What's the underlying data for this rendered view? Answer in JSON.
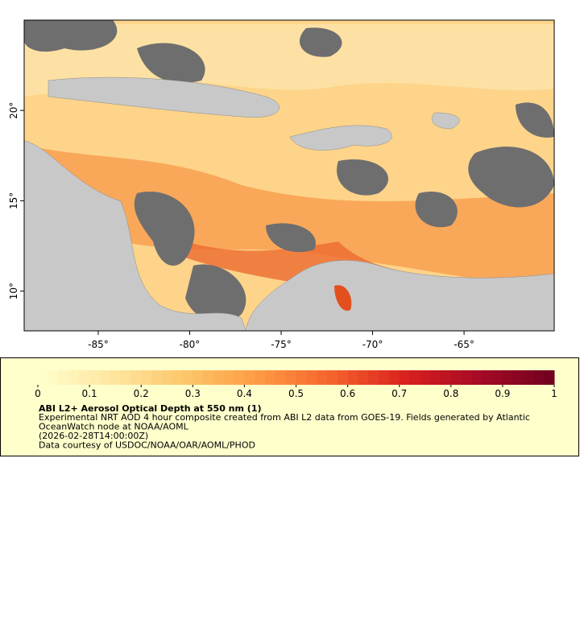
{
  "map": {
    "xlim": [
      -89.05,
      -60.07
    ],
    "ylim": [
      7.8,
      25
    ],
    "xticks": [
      {
        "value": -85,
        "label": "-85°"
      },
      {
        "value": -80,
        "label": "-80°"
      },
      {
        "value": -75,
        "label": "-75°"
      },
      {
        "value": -70,
        "label": "-70°"
      },
      {
        "value": -65,
        "label": "-65°"
      }
    ],
    "yticks": [
      {
        "value": 10,
        "label": "10°"
      },
      {
        "value": 15,
        "label": "15°"
      },
      {
        "value": 20,
        "label": "20°"
      }
    ]
  },
  "colorbar": {
    "range": [
      0,
      1
    ],
    "ticks": [
      0,
      0.1,
      0.2,
      0.3,
      0.4,
      0.5,
      0.6,
      0.7,
      0.8,
      0.9,
      1
    ],
    "colormap": [
      "#ffffcc",
      "#fee6a0",
      "#fdc66a",
      "#fd9a42",
      "#f5622c",
      "#d9201e",
      "#a50a26",
      "#70001f"
    ],
    "steps": 50
  },
  "legend": {
    "title": "ABI L2+ Aerosol Optical Depth at 550 nm (1)",
    "lines": [
      "Experimental NRT AOD 4 hour composite created from ABI L2 data from GOES-19. Fields generated by Atlantic",
      "OceanWatch node at NOAA/AOML",
      "(2026-02-28T14:00:00Z)",
      "Data courtesy of USDOC/NOAA/OAR/AOML/PHOD"
    ]
  }
}
